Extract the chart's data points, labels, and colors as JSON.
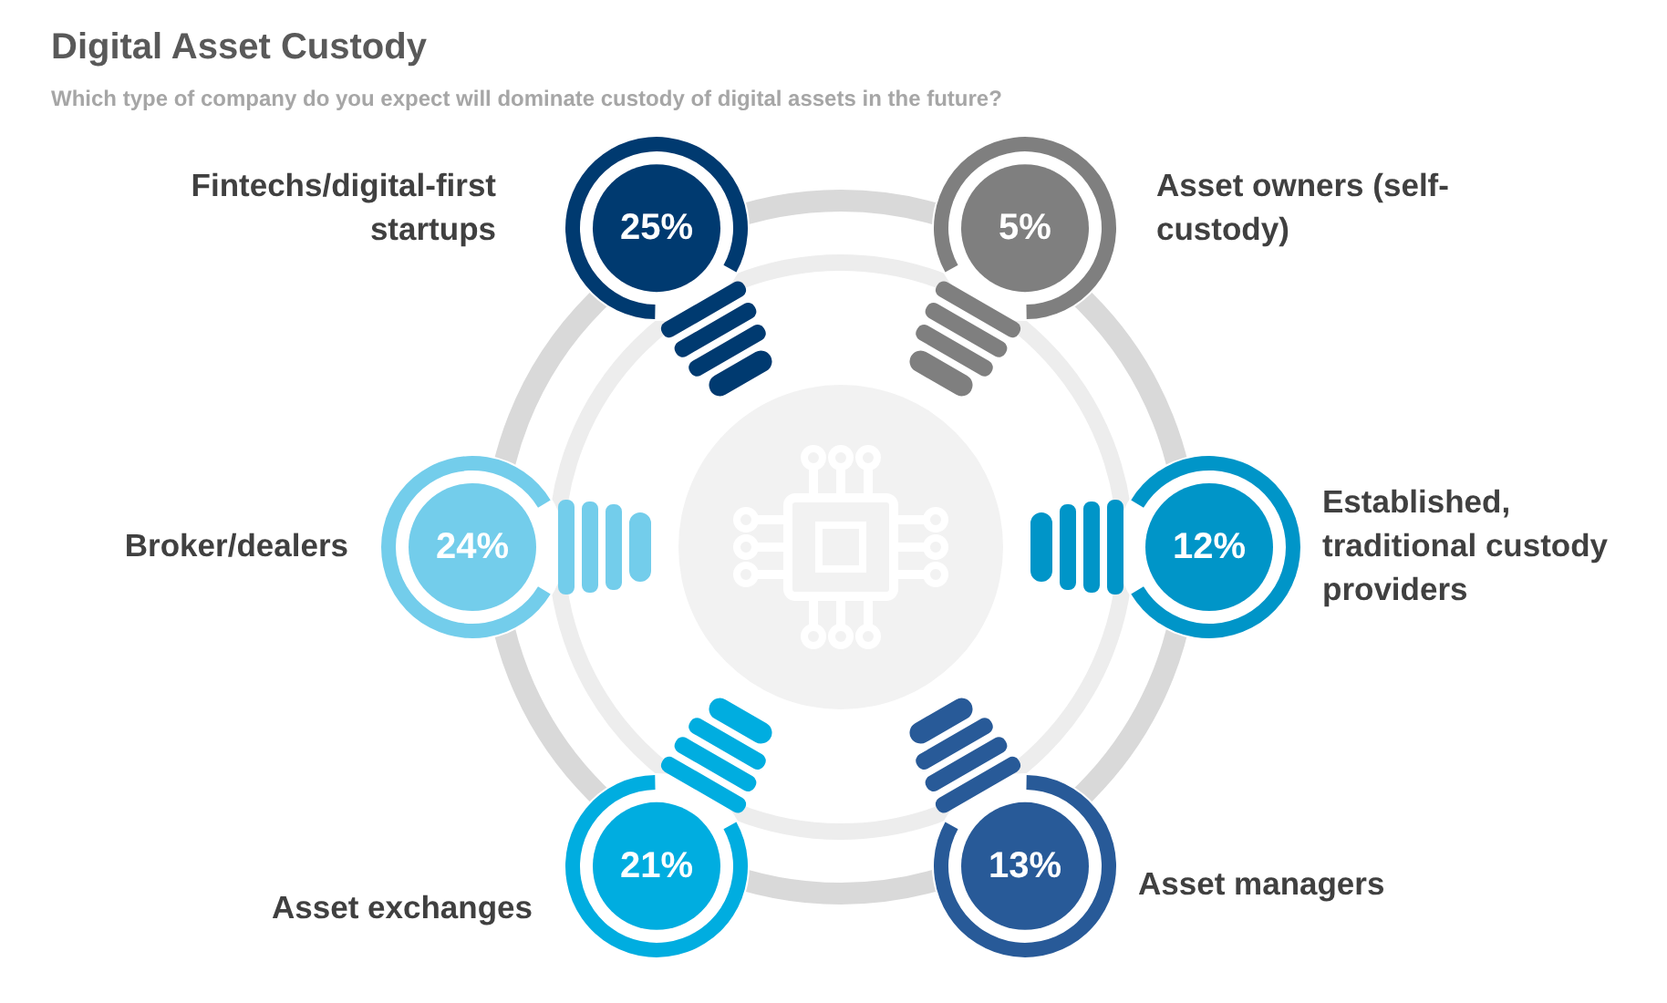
{
  "chart_data": {
    "type": "other",
    "title": "Digital Asset Custody",
    "subtitle": "Which type of company do you expect will dominate custody of digital assets in the future?",
    "categories": [
      "Fintechs/digital-first startups",
      "Asset owners (self-custody)",
      "Established, traditional custody providers",
      "Asset managers",
      "Asset exchanges",
      "Broker/dealers"
    ],
    "values": [
      25,
      5,
      12,
      13,
      21,
      24
    ],
    "value_labels": [
      "25%",
      "5%",
      "12%",
      "13%",
      "21%",
      "24%"
    ],
    "colors": [
      "#003a70",
      "#7f7f7f",
      "#0095c8",
      "#285a98",
      "#00ade0",
      "#73cdeb"
    ]
  }
}
